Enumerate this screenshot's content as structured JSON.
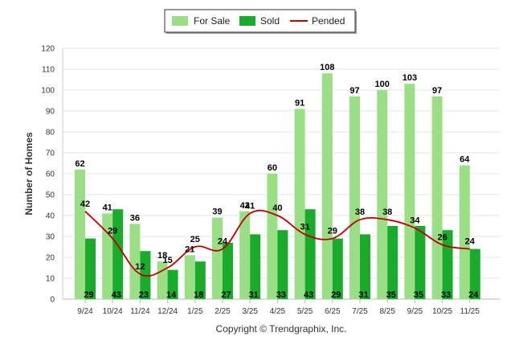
{
  "chart_data": {
    "type": "bar",
    "categories": [
      "9/24",
      "10/24",
      "11/24",
      "12/24",
      "1/25",
      "2/25",
      "3/25",
      "4/25",
      "5/25",
      "6/25",
      "7/25",
      "8/25",
      "9/25",
      "10/25",
      "11/25"
    ],
    "series": [
      {
        "name": "For Sale",
        "type": "bar",
        "color": "#9adf86",
        "values": [
          62,
          41,
          36,
          18,
          21,
          39,
          42,
          60,
          91,
          108,
          97,
          100,
          103,
          97,
          64
        ]
      },
      {
        "name": "Sold",
        "type": "bar",
        "color": "#1aab2c",
        "values": [
          29,
          43,
          23,
          14,
          18,
          27,
          31,
          33,
          43,
          29,
          31,
          35,
          35,
          33,
          24
        ]
      },
      {
        "name": "Pended",
        "type": "line",
        "color": "#c00000",
        "values": [
          42,
          29,
          12,
          15,
          25,
          24,
          41,
          40,
          31,
          29,
          38,
          38,
          34,
          26,
          24
        ]
      }
    ],
    "title": "",
    "xlabel": "",
    "ylabel": "Number of Homes",
    "ylim": [
      0,
      120
    ],
    "yticks": [
      0,
      10,
      20,
      30,
      40,
      50,
      60,
      70,
      80,
      90,
      100,
      110,
      120
    ],
    "grid": true,
    "legend_position": "top-center",
    "credit": "Copyright © Trendgraphix, Inc."
  }
}
